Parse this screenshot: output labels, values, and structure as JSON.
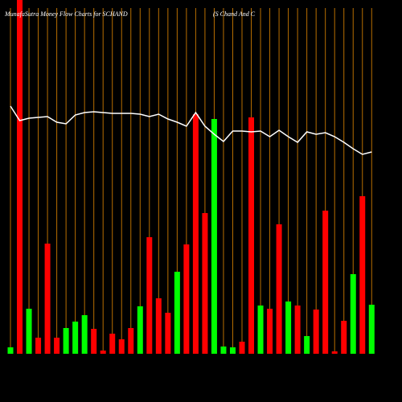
{
  "chart_data": {
    "type": "bar-line",
    "title": "MunafaSutra  Money Flow  Charts for SCHAND",
    "subtitle": "(S Chand And C",
    "values": [
      8,
      440,
      56,
      20,
      137,
      20,
      32,
      40,
      48,
      31,
      4,
      25,
      18,
      32,
      59,
      145,
      69,
      51,
      102,
      136,
      298,
      175,
      292,
      9,
      8,
      15,
      294,
      60,
      56,
      161,
      65,
      60,
      22,
      55,
      178,
      3,
      41,
      99,
      196,
      61
    ],
    "colors": [
      "#00ff00",
      "#ff0000",
      "#00ff00",
      "#ff0000",
      "#ff0000",
      "#ff0000",
      "#00ff00",
      "#00ff00",
      "#00ff00",
      "#ff0000",
      "#ff0000",
      "#ff0000",
      "#ff0000",
      "#ff0000",
      "#00ff00",
      "#ff0000",
      "#ff0000",
      "#ff0000",
      "#00ff00",
      "#ff0000",
      "#ff0000",
      "#ff0000",
      "#00ff00",
      "#00ff00",
      "#00ff00",
      "#ff0000",
      "#ff0000",
      "#00ff00",
      "#ff0000",
      "#ff0000",
      "#00ff00",
      "#ff0000",
      "#00ff00",
      "#ff0000",
      "#ff0000",
      "#ff0000",
      "#ff0000",
      "#00ff00",
      "#ff0000",
      "#00ff00"
    ],
    "line_values": [
      308,
      290,
      293,
      294,
      295,
      288,
      286,
      297,
      300,
      301,
      300,
      299,
      299,
      299,
      298,
      295,
      298,
      292,
      288,
      283,
      300,
      283,
      273,
      264,
      277,
      277,
      276,
      277,
      270,
      278,
      270,
      263,
      276,
      273,
      275,
      270,
      263,
      255,
      248,
      251
    ],
    "line_color": "#ffffff",
    "grid_color": "#b86e00",
    "ylim": [
      0,
      440
    ]
  }
}
